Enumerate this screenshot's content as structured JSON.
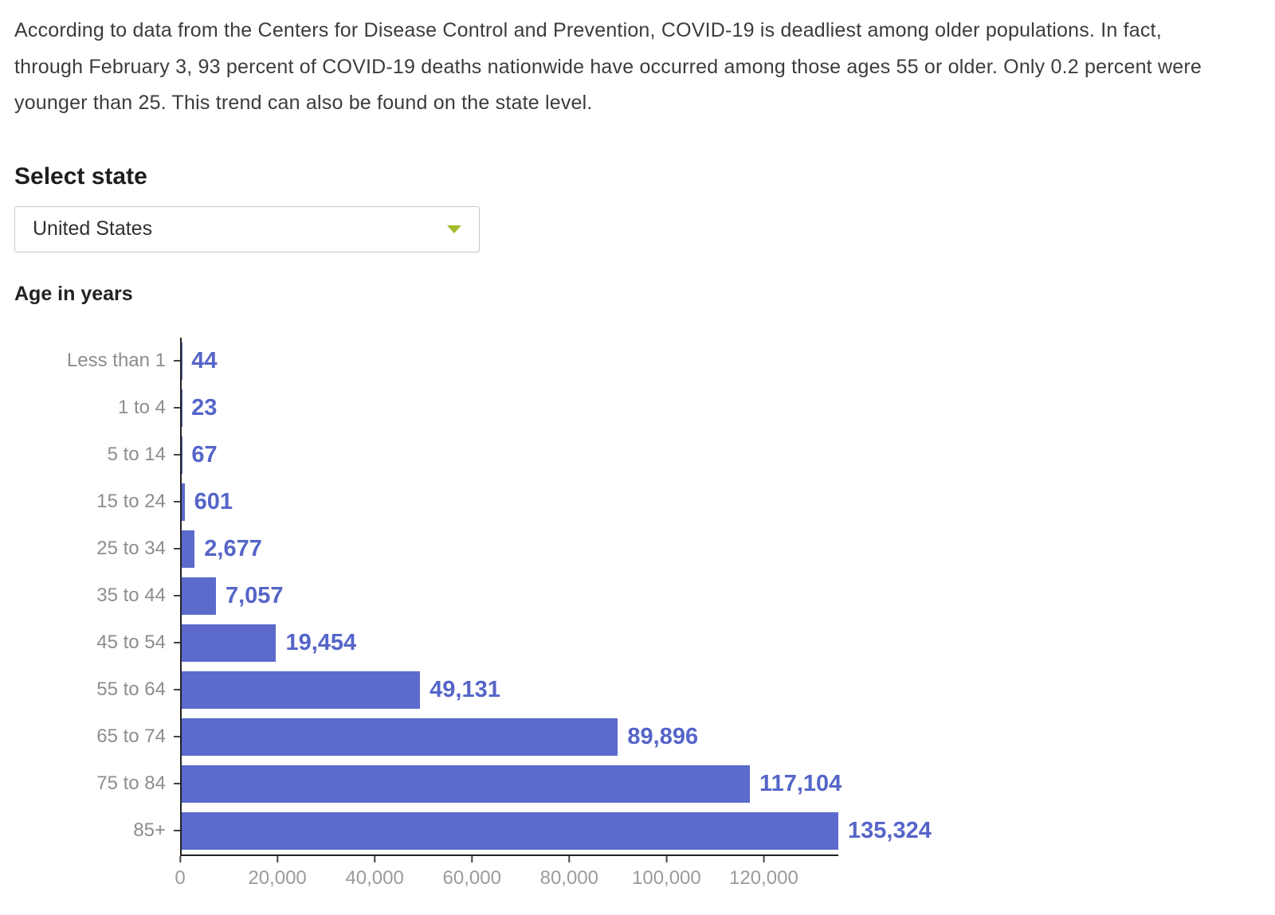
{
  "intro": {
    "text": "According to data from the Centers for Disease Control and Prevention, COVID-19 is deadliest among older populations. In fact, through February 3, 93 percent of COVID-19 deaths nationwide have occurred among those ages 55 or older. Only 0.2 percent were younger than 25. This trend can also be found on the state level."
  },
  "state_selector": {
    "label": "Select state",
    "selected": "United States",
    "chevron_color": "#a2bc2a"
  },
  "chart_data": {
    "type": "bar",
    "orientation": "horizontal",
    "title": "Age in years",
    "categories": [
      "Less than 1",
      "1 to 4",
      "5 to 14",
      "15 to 24",
      "25 to 34",
      "35 to 44",
      "45 to 54",
      "55 to 64",
      "65 to 74",
      "75 to 84",
      "85+"
    ],
    "values": [
      44,
      23,
      67,
      601,
      2677,
      7057,
      19454,
      49131,
      89896,
      117104,
      135324
    ],
    "value_labels": [
      "44",
      "23",
      "67",
      "601",
      "2,677",
      "7,057",
      "19,454",
      "49,131",
      "89,896",
      "117,104",
      "135,324"
    ],
    "x_ticks": [
      0,
      20000,
      40000,
      60000,
      80000,
      100000,
      120000
    ],
    "x_tick_labels": [
      "0",
      "20,000",
      "40,000",
      "60,000",
      "80,000",
      "100,000",
      "120,000"
    ],
    "xlim": [
      0,
      135324
    ],
    "grid": false,
    "legend": "none",
    "bar_color": "#5b6acb",
    "value_label_color": "#5565c8",
    "axis_label_color": "#8d8d8d"
  }
}
